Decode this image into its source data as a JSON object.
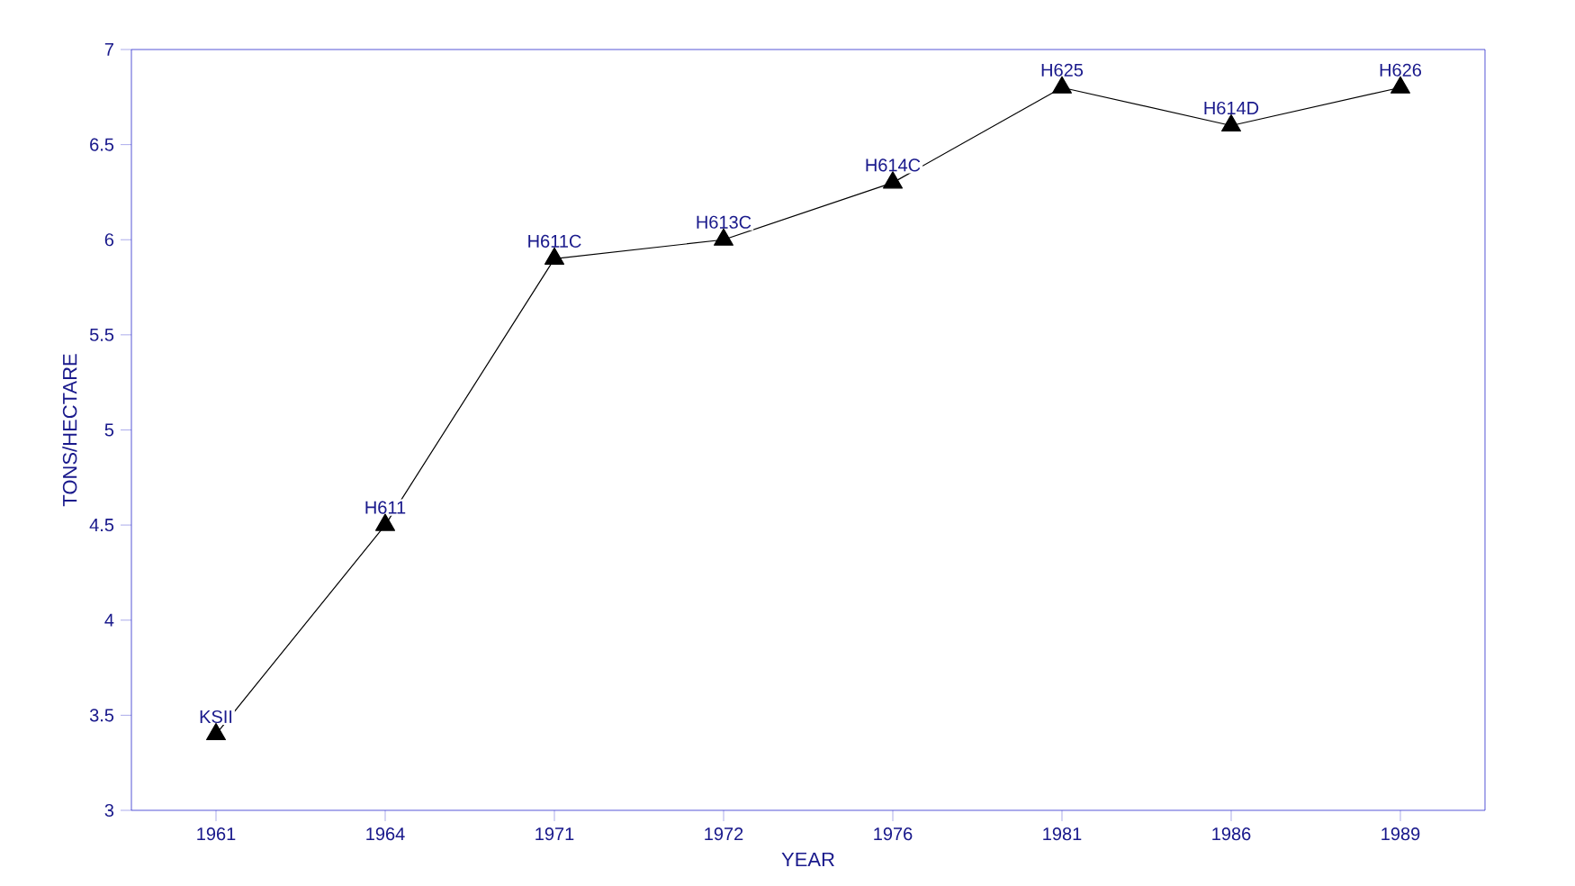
{
  "chart_data": {
    "type": "line",
    "xlabel": "YEAR",
    "ylabel": "TONS/HECTARE",
    "categories": [
      "1961",
      "1964",
      "1971",
      "1972",
      "1976",
      "1981",
      "1986",
      "1989"
    ],
    "series": [
      {
        "color": "#000000",
        "values": [
          3.4,
          4.5,
          5.9,
          6.0,
          6.3,
          6.8,
          6.6,
          6.8
        ]
      }
    ],
    "ylim": [
      3,
      7
    ],
    "yticks": [
      3,
      3.5,
      4,
      4.5,
      5,
      5.5,
      6,
      6.5,
      7
    ],
    "marker": "triangle",
    "line_style": "solid",
    "grid": false,
    "annotations": [
      {
        "text": "KSII",
        "x": "1961",
        "y": 3.4
      },
      {
        "text": "H611",
        "x": "1964",
        "y": 4.5
      },
      {
        "text": "H611C",
        "x": "1971",
        "y": 5.9
      },
      {
        "text": "H613C",
        "x": "1972",
        "y": 6.0
      },
      {
        "text": "H614C",
        "x": "1976",
        "y": 6.3
      },
      {
        "text": "H625",
        "x": "1981",
        "y": 6.8
      },
      {
        "text": "H614D",
        "x": "1986",
        "y": 6.6
      },
      {
        "text": "H626",
        "x": "1989",
        "y": 6.8
      }
    ]
  }
}
